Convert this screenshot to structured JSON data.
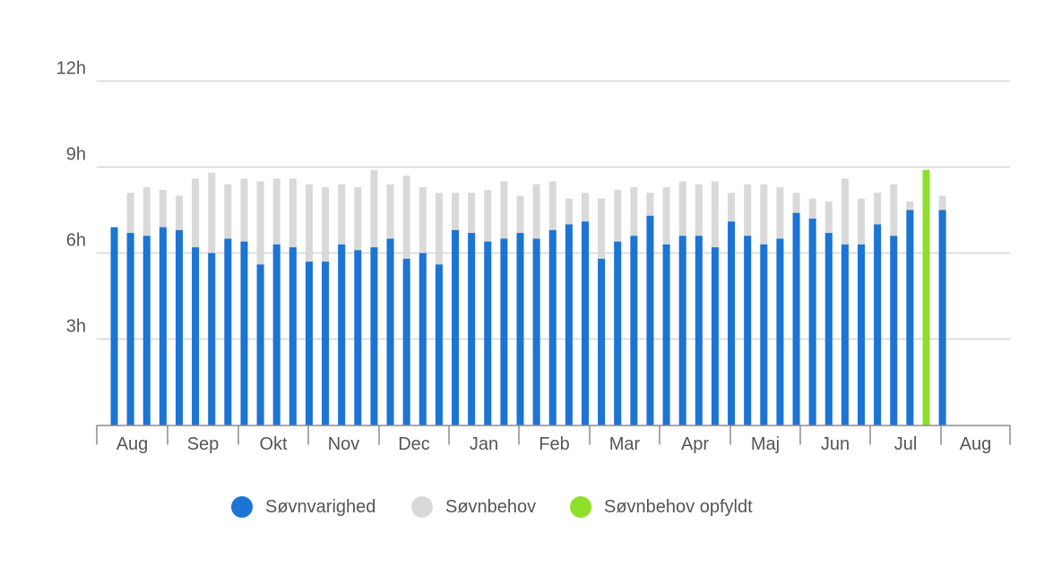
{
  "chart_data": {
    "type": "bar",
    "ylim": [
      0,
      12
    ],
    "y_ticks": [
      "3h",
      "6h",
      "9h",
      "12h"
    ],
    "y_tick_values": [
      3,
      6,
      9,
      12
    ],
    "x_tick_labels": [
      "Aug",
      "Sep",
      "Okt",
      "Nov",
      "Dec",
      "Jan",
      "Feb",
      "Mar",
      "Apr",
      "Maj",
      "Jun",
      "Jul",
      "Aug"
    ],
    "grid": true,
    "legend_position": "bottom",
    "series": [
      {
        "name": "Søvnvarighed",
        "color": "#1c74d4",
        "values": [
          6.9,
          6.7,
          6.6,
          6.9,
          6.8,
          6.2,
          6.0,
          6.5,
          6.4,
          5.6,
          6.3,
          6.2,
          5.7,
          5.7,
          6.3,
          6.1,
          6.2,
          6.5,
          5.8,
          6.0,
          5.6,
          6.8,
          6.7,
          6.4,
          6.5,
          6.7,
          6.5,
          6.8,
          7.0,
          7.1,
          5.8,
          6.4,
          6.6,
          7.3,
          6.3,
          6.6,
          6.6,
          6.2,
          7.1,
          6.6,
          6.3,
          6.5,
          7.4,
          7.2,
          6.7,
          6.3,
          6.3,
          7.0,
          6.6,
          7.5,
          8.9,
          7.5
        ]
      },
      {
        "name": "Søvnbehov",
        "color": "#d9d9d9",
        "values": [
          6.9,
          8.1,
          8.3,
          8.2,
          8.0,
          8.6,
          8.8,
          8.4,
          8.6,
          8.5,
          8.6,
          8.6,
          8.4,
          8.3,
          8.4,
          8.3,
          8.9,
          8.4,
          8.7,
          8.3,
          8.1,
          8.1,
          8.1,
          8.2,
          8.5,
          8.0,
          8.4,
          8.5,
          7.9,
          8.1,
          7.9,
          8.2,
          8.3,
          8.1,
          8.3,
          8.5,
          8.4,
          8.5,
          8.1,
          8.4,
          8.4,
          8.3,
          8.1,
          7.9,
          7.8,
          8.6,
          7.9,
          8.1,
          8.4,
          7.8,
          8.9,
          8.0
        ]
      },
      {
        "name": "Søvnbehov opfyldt",
        "color": "#8ee02a",
        "fulfilled_bar_index": 50
      }
    ]
  },
  "legend": {
    "items": [
      {
        "label": "Søvnvarighed",
        "color": "#1c74d4"
      },
      {
        "label": "Søvnbehov",
        "color": "#d9d9d9"
      },
      {
        "label": "Søvnbehov opfyldt",
        "color": "#8ee02a"
      }
    ]
  }
}
